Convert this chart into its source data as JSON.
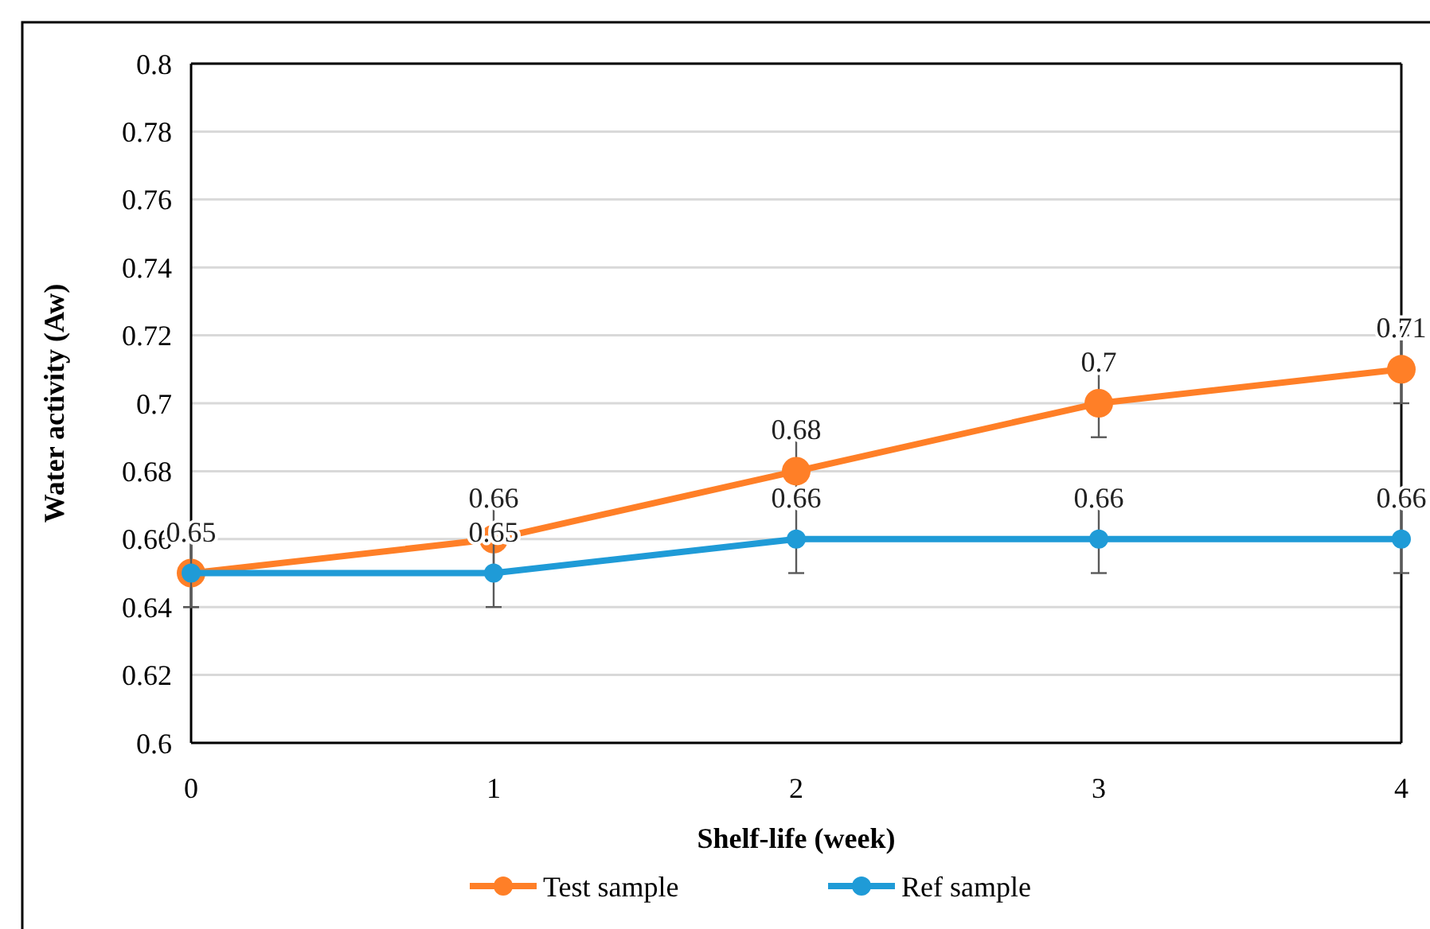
{
  "chart_data": {
    "type": "line",
    "xlabel": "Shelf-life (week)",
    "ylabel": "Water activity (Aw)",
    "x": [
      0,
      1,
      2,
      3,
      4
    ],
    "xlim": [
      0,
      4
    ],
    "xticks": [
      0,
      1,
      2,
      3,
      4
    ],
    "ylim": [
      0.6,
      0.8
    ],
    "yticks": [
      0.6,
      0.62,
      0.64,
      0.66,
      0.68,
      0.7,
      0.72,
      0.74,
      0.76,
      0.78,
      0.8
    ],
    "grid": "y",
    "legend": "bottom",
    "marker": "circle",
    "line_style": "solid",
    "series": [
      {
        "name": "Test sample",
        "color": "#ff7f27",
        "values": [
          0.65,
          0.66,
          0.68,
          0.7,
          0.71
        ],
        "errors": [
          0.01,
          0.01,
          0.01,
          0.01,
          0.01
        ],
        "value_labels": [
          null,
          "0.66",
          "0.68",
          "0.7",
          "0.71"
        ]
      },
      {
        "name": "Ref sample",
        "color": "#1f9bd7",
        "values": [
          0.65,
          0.65,
          0.66,
          0.66,
          0.66
        ],
        "errors": [
          0.01,
          0.01,
          0.01,
          0.01,
          0.01
        ],
        "value_labels": [
          "0.65",
          "0.65",
          "0.66",
          "0.66",
          "0.66"
        ]
      }
    ]
  }
}
